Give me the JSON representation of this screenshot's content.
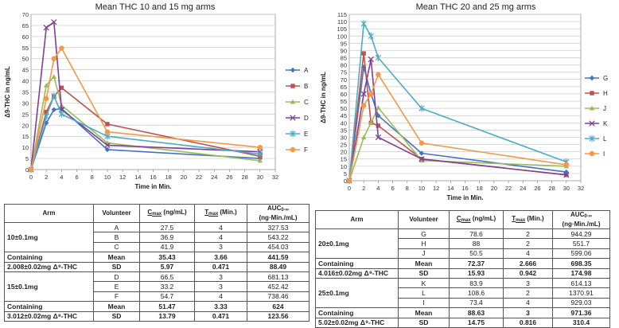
{
  "chart_data": [
    {
      "type": "line",
      "title": "Mean THC  10 and 15 mg arms",
      "xlabel": "Time in Min.",
      "ylabel": "Δ9-THC in ng/mL",
      "xlim": [
        0,
        32
      ],
      "ylim": [
        0,
        70
      ],
      "xticks": [
        0,
        2,
        4,
        6,
        8,
        10,
        12,
        14,
        16,
        18,
        20,
        22,
        24,
        26,
        28,
        30,
        32
      ],
      "yticks": [
        0,
        5,
        10,
        15,
        20,
        25,
        30,
        35,
        40,
        45,
        50,
        55,
        60,
        65,
        70
      ],
      "grid": "horizontal",
      "legend": "right",
      "series": [
        {
          "name": "A",
          "color": "#4472c4",
          "marker": "diamond",
          "x": [
            0,
            2,
            3,
            4,
            10,
            30
          ],
          "y": [
            0,
            21,
            27,
            27.5,
            9,
            5
          ]
        },
        {
          "name": "B",
          "color": "#c0504d",
          "marker": "square",
          "x": [
            0,
            2,
            3,
            4,
            10,
            30
          ],
          "y": [
            0,
            26,
            33,
            36.9,
            20.5,
            6
          ]
        },
        {
          "name": "C",
          "color": "#9bbb59",
          "marker": "triangle",
          "x": [
            0,
            2,
            3,
            4,
            10,
            30
          ],
          "y": [
            0,
            38,
            41.9,
            29,
            12,
            4
          ]
        },
        {
          "name": "D",
          "color": "#7f3f98",
          "marker": "x",
          "x": [
            0,
            2,
            3,
            4,
            10,
            30
          ],
          "y": [
            0,
            64,
            66.5,
            27,
            11,
            8
          ]
        },
        {
          "name": "E",
          "color": "#4bacc6",
          "marker": "star",
          "x": [
            0,
            2,
            3,
            4,
            10,
            30
          ],
          "y": [
            0,
            24,
            33.2,
            25,
            15,
            7
          ]
        },
        {
          "name": "F",
          "color": "#f79646",
          "marker": "circle",
          "x": [
            0,
            2,
            3,
            4,
            10,
            30
          ],
          "y": [
            0,
            32,
            50,
            54.7,
            17,
            10
          ]
        }
      ]
    },
    {
      "type": "line",
      "title": "Mean THC  20 and 25 mg arms",
      "xlabel": "Time in Min.",
      "ylabel": "Δ9-THC in ng/mL",
      "xlim": [
        0,
        32
      ],
      "ylim": [
        0,
        115
      ],
      "xticks": [
        0,
        2,
        4,
        6,
        8,
        10,
        12,
        14,
        16,
        18,
        20,
        22,
        24,
        26,
        28,
        30,
        32
      ],
      "yticks": [
        0,
        5,
        10,
        15,
        20,
        25,
        30,
        35,
        40,
        45,
        50,
        55,
        60,
        65,
        70,
        75,
        80,
        85,
        90,
        95,
        100,
        105,
        110,
        115
      ],
      "grid": "horizontal",
      "legend": "right",
      "series": [
        {
          "name": "G",
          "color": "#4472c4",
          "marker": "diamond",
          "x": [
            0,
            2,
            3,
            4,
            10,
            30
          ],
          "y": [
            0,
            78.6,
            60,
            45,
            19,
            6
          ]
        },
        {
          "name": "H",
          "color": "#c0504d",
          "marker": "square",
          "x": [
            0,
            2,
            3,
            4,
            10,
            30
          ],
          "y": [
            0,
            88,
            40,
            38,
            15,
            4
          ]
        },
        {
          "name": "J",
          "color": "#9bbb59",
          "marker": "triangle",
          "x": [
            0,
            2,
            3,
            4,
            10,
            30
          ],
          "y": [
            0,
            30,
            40,
            50.5,
            14,
            10
          ]
        },
        {
          "name": "K",
          "color": "#7f3f98",
          "marker": "x",
          "x": [
            0,
            2,
            3,
            4,
            10,
            30
          ],
          "y": [
            0,
            60,
            83.9,
            30,
            15,
            4
          ]
        },
        {
          "name": "L",
          "color": "#4bacc6",
          "marker": "star",
          "x": [
            0,
            2,
            3,
            4,
            10,
            30
          ],
          "y": [
            0,
            108.6,
            100,
            85,
            50,
            13
          ]
        },
        {
          "name": "I",
          "color": "#f79646",
          "marker": "circle",
          "x": [
            0,
            2,
            3,
            4,
            10,
            30
          ],
          "y": [
            0,
            52,
            60,
            73.4,
            26,
            11
          ]
        }
      ]
    },
    {
      "type": "table",
      "columns": {
        "arm": "Arm",
        "volunteer": "Volunteer",
        "cmax_c": "C",
        "cmax_sub": "max",
        "cmax_unit": " (ng/mL)",
        "tmax_t": "T",
        "tmax_sub": "max",
        "tmax_unit": " (Min.)",
        "auc_a": "AUC",
        "auc_sub": "0-∞",
        "auc_unit": "(ng·Min./mL)"
      },
      "groups": [
        {
          "arm_dose": "10±0.1mg",
          "arm_contain": "Containing",
          "arm_thc": "2.008±0.02mg Δ⁹-THC",
          "rows": [
            [
              "A",
              "27.5",
              "4",
              "327.53"
            ],
            [
              "B",
              "36.9",
              "4",
              "543.22"
            ],
            [
              "C",
              "41.9",
              "3",
              "454.03"
            ],
            [
              "Mean",
              "35.43",
              "3.66",
              "441.59"
            ],
            [
              "SD",
              "5.97",
              "0.471",
              "88.49"
            ]
          ]
        },
        {
          "arm_dose": "15±0.1mg",
          "arm_contain": "Containing",
          "arm_thc": "3.012±0.02mg Δ⁹-THC",
          "rows": [
            [
              "D",
              "66.5",
              "3",
              "681.13"
            ],
            [
              "E",
              "33.2",
              "3",
              "452.42"
            ],
            [
              "F",
              "54.7",
              "4",
              "738.46"
            ],
            [
              "Mean",
              "51.47",
              "3.33",
              "624"
            ],
            [
              "SD",
              "13.79",
              "0.471",
              "123.56"
            ]
          ]
        }
      ]
    },
    {
      "type": "table",
      "columns": {
        "arm": "Arm",
        "volunteer": "Volunteer",
        "cmax_c": "C",
        "cmax_sub": "max",
        "cmax_unit": " (ng/mL)",
        "tmax_t": "T",
        "tmax_sub": "max",
        "tmax_unit": " (Min.)",
        "auc_a": "AUC",
        "auc_sub": "0-∞",
        "auc_unit": "(ng·Min./mL)"
      },
      "groups": [
        {
          "arm_dose": "20±0.1mg",
          "arm_contain": "Containing",
          "arm_thc": "4.016±0.02mg Δ⁹-THC",
          "rows": [
            [
              "G",
              "78.6",
              "2",
              "944.29"
            ],
            [
              "H",
              "88",
              "2",
              "551.7"
            ],
            [
              "J",
              "50.5",
              "4",
              "599.06"
            ],
            [
              "Mean",
              "72.37",
              "2.666",
              "698.35"
            ],
            [
              "SD",
              "15.93",
              "0.942",
              "174.98"
            ]
          ]
        },
        {
          "arm_dose": "25±0.1mg",
          "arm_contain": "Containing",
          "arm_thc": "5.02±0.02mg Δ⁹-THC",
          "rows": [
            [
              "K",
              "83.9",
              "3",
              "614.13"
            ],
            [
              "L",
              "108.6",
              "2",
              "1370.91"
            ],
            [
              "I",
              "73.4",
              "4",
              "929.03"
            ],
            [
              "Mean",
              "88.63",
              "3",
              "971.36"
            ],
            [
              "SD",
              "14.75",
              "0.816",
              "310.4"
            ]
          ]
        }
      ]
    }
  ]
}
